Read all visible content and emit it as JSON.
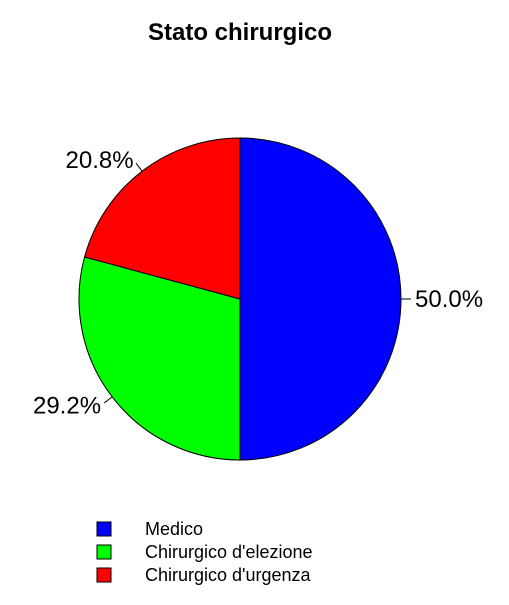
{
  "chart_data": {
    "type": "pie",
    "title": "Stato chirurgico",
    "categories": [
      "Medico",
      "Chirurgico d'elezione",
      "Chirurgico d'urgenza"
    ],
    "values": [
      50.0,
      29.2,
      20.8
    ],
    "labels": [
      "50.0%",
      "29.2%",
      "20.8%"
    ],
    "colors": [
      "#0000ff",
      "#00ff00",
      "#ff0000"
    ],
    "legend_position": "bottom"
  }
}
